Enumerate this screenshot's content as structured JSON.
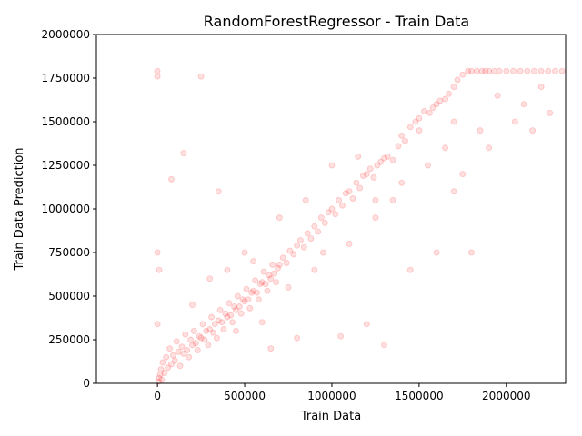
{
  "chart_data": {
    "type": "scatter",
    "title": "RandomForestRegressor - Train Data",
    "xlabel": "Train Data",
    "ylabel": "Train Data Prediction",
    "xlim": [
      -350000,
      2340000
    ],
    "ylim": [
      0,
      2000000
    ],
    "xticks": [
      0,
      500000,
      1000000,
      1500000,
      2000000
    ],
    "xtick_labels": [
      "0",
      "500000",
      "1000000",
      "1500000",
      "2000000"
    ],
    "yticks": [
      0,
      250000,
      500000,
      750000,
      1000000,
      1250000,
      1500000,
      1750000,
      2000000
    ],
    "ytick_labels": [
      "0",
      "250000",
      "500000",
      "750000",
      "1000000",
      "1250000",
      "1500000",
      "1750000",
      "2000000"
    ],
    "grid": false,
    "legend": "none",
    "marker_color": "#ff0000",
    "marker_alpha": 0.12,
    "series": [
      {
        "points": [
          [
            5000,
            10000
          ],
          [
            10000,
            30000
          ],
          [
            15000,
            50000
          ],
          [
            20000,
            80000
          ],
          [
            25000,
            20000
          ],
          [
            30000,
            120000
          ],
          [
            40000,
            60000
          ],
          [
            50000,
            150000
          ],
          [
            60000,
            90000
          ],
          [
            70000,
            200000
          ],
          [
            80000,
            110000
          ],
          [
            90000,
            160000
          ],
          [
            100000,
            130000
          ],
          [
            110000,
            240000
          ],
          [
            120000,
            180000
          ],
          [
            130000,
            100000
          ],
          [
            140000,
            210000
          ],
          [
            150000,
            170000
          ],
          [
            160000,
            280000
          ],
          [
            170000,
            190000
          ],
          [
            180000,
            150000
          ],
          [
            190000,
            250000
          ],
          [
            200000,
            220000
          ],
          [
            210000,
            300000
          ],
          [
            220000,
            230000
          ],
          [
            230000,
            190000
          ],
          [
            240000,
            270000
          ],
          [
            250000,
            260000
          ],
          [
            260000,
            340000
          ],
          [
            270000,
            250000
          ],
          [
            280000,
            300000
          ],
          [
            290000,
            220000
          ],
          [
            300000,
            310000
          ],
          [
            310000,
            380000
          ],
          [
            320000,
            290000
          ],
          [
            330000,
            340000
          ],
          [
            340000,
            260000
          ],
          [
            350000,
            360000
          ],
          [
            360000,
            420000
          ],
          [
            370000,
            350000
          ],
          [
            380000,
            310000
          ],
          [
            390000,
            400000
          ],
          [
            400000,
            380000
          ],
          [
            410000,
            460000
          ],
          [
            420000,
            390000
          ],
          [
            430000,
            350000
          ],
          [
            440000,
            440000
          ],
          [
            450000,
            420000
          ],
          [
            460000,
            500000
          ],
          [
            470000,
            440000
          ],
          [
            480000,
            400000
          ],
          [
            490000,
            480000
          ],
          [
            500000,
            470000
          ],
          [
            510000,
            540000
          ],
          [
            520000,
            480000
          ],
          [
            530000,
            430000
          ],
          [
            540000,
            520000
          ],
          [
            550000,
            530000
          ],
          [
            560000,
            590000
          ],
          [
            570000,
            520000
          ],
          [
            580000,
            480000
          ],
          [
            590000,
            570000
          ],
          [
            600000,
            580000
          ],
          [
            610000,
            640000
          ],
          [
            620000,
            570000
          ],
          [
            630000,
            530000
          ],
          [
            640000,
            620000
          ],
          [
            650000,
            600000
          ],
          [
            660000,
            680000
          ],
          [
            670000,
            630000
          ],
          [
            680000,
            580000
          ],
          [
            690000,
            660000
          ],
          [
            700000,
            680000
          ],
          [
            720000,
            720000
          ],
          [
            740000,
            690000
          ],
          [
            760000,
            760000
          ],
          [
            780000,
            740000
          ],
          [
            800000,
            790000
          ],
          [
            820000,
            820000
          ],
          [
            840000,
            780000
          ],
          [
            860000,
            860000
          ],
          [
            880000,
            830000
          ],
          [
            900000,
            900000
          ],
          [
            920000,
            870000
          ],
          [
            940000,
            950000
          ],
          [
            960000,
            920000
          ],
          [
            980000,
            980000
          ],
          [
            1000000,
            1000000
          ],
          [
            1020000,
            970000
          ],
          [
            1040000,
            1050000
          ],
          [
            1060000,
            1020000
          ],
          [
            1080000,
            1090000
          ],
          [
            1100000,
            1100000
          ],
          [
            1120000,
            1060000
          ],
          [
            1140000,
            1150000
          ],
          [
            1160000,
            1120000
          ],
          [
            1180000,
            1190000
          ],
          [
            1200000,
            1200000
          ],
          [
            1220000,
            1230000
          ],
          [
            1240000,
            1180000
          ],
          [
            1260000,
            1250000
          ],
          [
            1280000,
            1270000
          ],
          [
            1300000,
            1290000
          ],
          [
            1320000,
            1300000
          ],
          [
            1350000,
            1280000
          ],
          [
            1380000,
            1360000
          ],
          [
            1400000,
            1420000
          ],
          [
            1420000,
            1390000
          ],
          [
            1450000,
            1470000
          ],
          [
            1480000,
            1500000
          ],
          [
            1500000,
            1520000
          ],
          [
            1530000,
            1560000
          ],
          [
            1560000,
            1550000
          ],
          [
            1580000,
            1580000
          ],
          [
            1600000,
            1600000
          ],
          [
            1620000,
            1620000
          ],
          [
            1650000,
            1630000
          ],
          [
            1670000,
            1660000
          ],
          [
            1700000,
            1700000
          ],
          [
            1720000,
            1740000
          ],
          [
            1750000,
            1770000
          ],
          [
            1780000,
            1790000
          ],
          [
            1800000,
            1790000
          ],
          [
            1830000,
            1790000
          ],
          [
            1860000,
            1790000
          ],
          [
            1880000,
            1790000
          ],
          [
            1900000,
            1790000
          ],
          [
            1930000,
            1790000
          ],
          [
            1960000,
            1790000
          ],
          [
            2000000,
            1790000
          ],
          [
            2040000,
            1790000
          ],
          [
            2080000,
            1790000
          ],
          [
            2120000,
            1790000
          ],
          [
            2160000,
            1790000
          ],
          [
            2200000,
            1790000
          ],
          [
            2240000,
            1790000
          ],
          [
            2280000,
            1790000
          ],
          [
            2320000,
            1790000
          ],
          [
            0,
            1790000
          ],
          [
            0,
            1760000
          ],
          [
            0,
            750000
          ],
          [
            0,
            340000
          ],
          [
            10000,
            650000
          ],
          [
            80000,
            1170000
          ],
          [
            150000,
            1320000
          ],
          [
            250000,
            1760000
          ],
          [
            350000,
            1100000
          ],
          [
            650000,
            200000
          ],
          [
            800000,
            260000
          ],
          [
            1050000,
            270000
          ],
          [
            1200000,
            340000
          ],
          [
            1300000,
            220000
          ],
          [
            1450000,
            650000
          ],
          [
            1600000,
            750000
          ],
          [
            1700000,
            1100000
          ],
          [
            1800000,
            750000
          ],
          [
            1900000,
            1350000
          ],
          [
            2050000,
            1500000
          ],
          [
            2150000,
            1450000
          ],
          [
            2250000,
            1550000
          ],
          [
            1550000,
            1250000
          ],
          [
            1750000,
            1200000
          ],
          [
            1850000,
            1450000
          ],
          [
            1950000,
            1650000
          ],
          [
            2100000,
            1600000
          ],
          [
            2200000,
            1700000
          ],
          [
            500000,
            750000
          ],
          [
            600000,
            350000
          ],
          [
            700000,
            950000
          ],
          [
            900000,
            650000
          ],
          [
            1000000,
            1250000
          ],
          [
            1100000,
            800000
          ],
          [
            1250000,
            950000
          ],
          [
            1350000,
            1050000
          ],
          [
            1400000,
            1150000
          ],
          [
            1500000,
            1450000
          ],
          [
            1650000,
            1350000
          ],
          [
            1700000,
            1500000
          ],
          [
            200000,
            450000
          ],
          [
            300000,
            600000
          ],
          [
            400000,
            650000
          ],
          [
            450000,
            300000
          ],
          [
            550000,
            700000
          ],
          [
            750000,
            550000
          ],
          [
            850000,
            1050000
          ],
          [
            950000,
            750000
          ],
          [
            1150000,
            1300000
          ],
          [
            1250000,
            1050000
          ]
        ]
      }
    ]
  }
}
